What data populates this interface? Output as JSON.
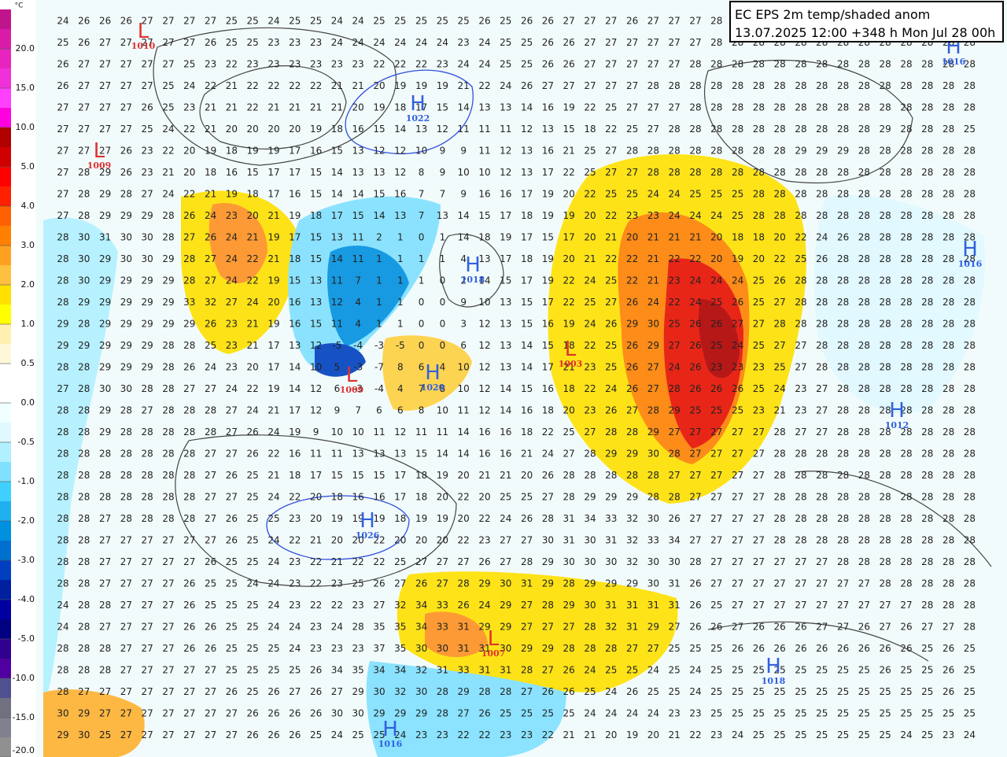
{
  "title": "EC EPS 2m temp/shaded anom",
  "subtitle": "13.07.2025 12:00 +348 h Mon Jul 28 00h",
  "legend": {
    "unit": "°C",
    "ticks": [
      {
        "value": 20,
        "label": "20.0"
      },
      {
        "value": 15,
        "label": "15.0"
      },
      {
        "value": 10,
        "label": "10.0"
      },
      {
        "value": 5,
        "label": "5.0"
      },
      {
        "value": 4,
        "label": "4.0"
      },
      {
        "value": 3,
        "label": "3.0"
      },
      {
        "value": 2,
        "label": "2.0"
      },
      {
        "value": 1,
        "label": "1.0"
      },
      0.5,
      {
        "value": 0,
        "label": "0.0"
      },
      -0.5,
      {
        "value": -1,
        "label": "-1.0"
      },
      {
        "value": -2,
        "label": "-2.0"
      },
      {
        "value": -3,
        "label": "-3.0"
      },
      {
        "value": -4,
        "label": "-4.0"
      },
      {
        "value": -5,
        "label": "-5.0"
      },
      {
        "value": -10,
        "label": "-10.0"
      },
      {
        "value": -15,
        "label": "-15.0"
      },
      {
        "value": -20,
        "label": "-20.0"
      }
    ],
    "colors": [
      "#c0148c",
      "#d81ca8",
      "#e824c0",
      "#f030d8",
      "#ff40ff",
      "#ff00e0",
      "#b00000",
      "#d00000",
      "#ff0000",
      "#ff2000",
      "#ff6000",
      "#ff8000",
      "#ffa020",
      "#ffc040",
      "#ffe000",
      "#ffff00",
      "#fff0b0",
      "#fff8d8",
      "#ffffff",
      "#ffffff",
      "#f0ffff",
      "#e0f8ff",
      "#b0f0ff",
      "#80e0ff",
      "#40d0ff",
      "#20b0f0",
      "#0090e0",
      "#0070d0",
      "#0040c0",
      "#0020a0",
      "#0000a0",
      "#000080",
      "#300090",
      "#5000a0",
      "#505090",
      "#707080",
      "#808090",
      "#909090"
    ]
  },
  "pressure_centers": [
    {
      "symbol": "L",
      "label": "1010"
    },
    {
      "symbol": "L",
      "label": "1009"
    },
    {
      "symbol": "H",
      "label": "1022"
    },
    {
      "symbol": "H",
      "label": "1018"
    },
    {
      "symbol": "H",
      "label": "1026"
    },
    {
      "symbol": "L",
      "label": "1009"
    },
    {
      "symbol": "L",
      "label": "1003"
    },
    {
      "symbol": "H",
      "label": "1020"
    },
    {
      "symbol": "H",
      "label": "1016"
    },
    {
      "symbol": "H",
      "label": "1012"
    },
    {
      "symbol": "L",
      "label": "1007"
    },
    {
      "symbol": "H",
      "label": "1018"
    },
    {
      "symbol": "H",
      "label": "1016"
    },
    {
      "symbol": "H",
      "label": "1016"
    }
  ],
  "temperature_grid": [
    [
      24,
      26,
      26,
      26,
      27,
      27,
      27,
      27,
      25,
      25,
      24,
      25,
      25,
      24,
      24,
      25,
      25,
      25,
      25,
      25,
      26,
      25,
      26,
      26,
      27,
      27,
      27,
      26,
      27,
      27,
      27,
      28,
      28,
      28,
      27,
      28,
      28,
      28,
      28,
      28,
      28,
      28,
      28,
      28
    ],
    [
      25,
      26,
      27,
      27,
      27,
      27,
      27,
      26,
      25,
      25,
      23,
      23,
      23,
      24,
      24,
      24,
      24,
      24,
      24,
      23,
      24,
      25,
      25,
      26,
      26,
      27,
      27,
      27,
      27,
      27,
      27,
      28,
      28,
      28,
      28,
      28,
      28,
      28,
      28,
      28,
      28,
      28,
      28,
      28
    ],
    [
      26,
      27,
      27,
      27,
      27,
      27,
      25,
      23,
      22,
      23,
      23,
      23,
      23,
      23,
      23,
      22,
      22,
      22,
      23,
      24,
      24,
      25,
      25,
      26,
      26,
      27,
      27,
      27,
      27,
      27,
      28,
      28,
      28,
      28,
      28,
      28,
      28,
      28,
      28,
      28,
      28,
      28,
      28,
      28
    ],
    [
      26,
      27,
      27,
      27,
      27,
      25,
      24,
      22,
      21,
      22,
      22,
      22,
      22,
      21,
      21,
      20,
      19,
      19,
      19,
      21,
      22,
      24,
      26,
      27,
      27,
      27,
      27,
      27,
      28,
      28,
      28,
      28,
      28,
      28,
      28,
      28,
      28,
      28,
      28,
      28,
      28,
      28,
      28,
      28
    ],
    [
      27,
      27,
      27,
      27,
      26,
      25,
      23,
      21,
      21,
      22,
      21,
      21,
      21,
      21,
      20,
      19,
      18,
      17,
      15,
      14,
      13,
      13,
      14,
      16,
      19,
      22,
      25,
      27,
      27,
      27,
      28,
      28,
      28,
      28,
      28,
      28,
      28,
      28,
      28,
      28,
      28,
      28,
      28,
      28
    ],
    [
      27,
      27,
      27,
      27,
      25,
      24,
      22,
      21,
      20,
      20,
      20,
      20,
      19,
      18,
      16,
      15,
      14,
      13,
      12,
      11,
      11,
      11,
      12,
      13,
      15,
      18,
      22,
      25,
      27,
      28,
      28,
      28,
      28,
      28,
      28,
      28,
      28,
      28,
      28,
      29,
      28,
      28,
      28,
      25
    ],
    [
      27,
      27,
      27,
      26,
      23,
      22,
      20,
      19,
      18,
      19,
      19,
      17,
      16,
      15,
      13,
      12,
      12,
      10,
      9,
      9,
      11,
      12,
      13,
      16,
      21,
      25,
      27,
      28,
      28,
      28,
      28,
      28,
      28,
      28,
      28,
      29,
      29,
      29,
      28,
      28,
      28,
      28,
      28,
      28
    ],
    [
      27,
      28,
      29,
      26,
      23,
      21,
      20,
      18,
      16,
      15,
      17,
      17,
      15,
      14,
      13,
      13,
      12,
      8,
      9,
      10,
      10,
      12,
      13,
      17,
      22,
      25,
      27,
      27,
      28,
      28,
      28,
      28,
      28,
      28,
      28,
      28,
      28,
      28,
      28,
      28,
      28,
      28,
      28,
      28
    ],
    [
      27,
      28,
      29,
      28,
      27,
      24,
      22,
      21,
      19,
      18,
      17,
      16,
      15,
      14,
      14,
      15,
      16,
      7,
      7,
      9,
      16,
      16,
      17,
      19,
      20,
      22,
      25,
      25,
      24,
      24,
      25,
      25,
      25,
      28,
      28,
      28,
      28,
      28,
      28,
      28,
      28,
      28,
      28,
      28
    ],
    [
      27,
      28,
      29,
      29,
      29,
      28,
      26,
      24,
      23,
      20,
      21,
      19,
      18,
      17,
      15,
      14,
      13,
      7,
      13,
      14,
      15,
      17,
      18,
      19,
      19,
      20,
      22,
      23,
      23,
      24,
      24,
      24,
      25,
      28,
      28,
      28,
      28,
      28,
      28,
      28,
      28,
      28,
      28,
      28
    ],
    [
      28,
      30,
      31,
      30,
      30,
      28,
      27,
      26,
      24,
      21,
      19,
      17,
      15,
      13,
      11,
      2,
      1,
      0,
      1,
      14,
      18,
      19,
      17,
      15,
      17,
      20,
      21,
      20,
      21,
      21,
      21,
      20,
      18,
      18,
      20,
      22,
      24,
      26,
      28,
      28,
      28,
      28,
      28,
      28
    ],
    [
      28,
      30,
      29,
      30,
      30,
      29,
      28,
      27,
      24,
      22,
      21,
      18,
      15,
      14,
      11,
      1,
      1,
      1,
      1,
      4,
      13,
      17,
      18,
      19,
      20,
      21,
      22,
      22,
      21,
      22,
      22,
      20,
      19,
      20,
      22,
      25,
      26,
      28,
      28,
      28,
      28,
      28,
      28,
      28
    ],
    [
      28,
      30,
      29,
      29,
      29,
      29,
      28,
      27,
      24,
      22,
      19,
      15,
      13,
      11,
      7,
      1,
      1,
      1,
      0,
      2,
      14,
      15,
      17,
      19,
      22,
      24,
      25,
      22,
      21,
      23,
      24,
      24,
      24,
      25,
      26,
      28,
      28,
      28,
      28,
      28,
      28,
      28,
      28,
      28
    ],
    [
      28,
      29,
      29,
      29,
      29,
      29,
      33,
      32,
      27,
      24,
      20,
      16,
      13,
      12,
      4,
      1,
      1,
      0,
      0,
      9,
      10,
      13,
      15,
      17,
      22,
      25,
      27,
      26,
      24,
      22,
      24,
      25,
      26,
      25,
      27,
      28,
      28,
      28,
      28,
      28,
      28,
      28,
      28,
      28
    ],
    [
      29,
      28,
      29,
      29,
      29,
      29,
      29,
      26,
      23,
      21,
      19,
      16,
      15,
      11,
      4,
      1,
      1,
      0,
      0,
      3,
      12,
      13,
      15,
      16,
      19,
      24,
      26,
      29,
      30,
      25,
      26,
      26,
      27,
      27,
      28,
      28,
      28,
      28,
      28,
      28,
      28,
      28,
      28,
      28
    ],
    [
      29,
      29,
      29,
      29,
      29,
      28,
      28,
      25,
      23,
      21,
      17,
      13,
      12,
      -5,
      -4,
      -3,
      -5,
      0,
      0,
      6,
      12,
      13,
      14,
      15,
      18,
      22,
      25,
      26,
      29,
      27,
      26,
      25,
      24,
      25,
      27,
      27,
      28,
      28,
      28,
      28,
      28,
      28,
      28,
      28
    ],
    [
      28,
      28,
      29,
      29,
      29,
      28,
      26,
      24,
      23,
      20,
      17,
      14,
      10,
      5,
      -3,
      -7,
      8,
      6,
      4,
      10,
      12,
      13,
      14,
      17,
      21,
      23,
      25,
      26,
      27,
      24,
      26,
      23,
      23,
      23,
      25,
      27,
      28,
      28,
      28,
      28,
      28,
      28,
      28,
      28
    ],
    [
      27,
      28,
      30,
      30,
      28,
      28,
      27,
      27,
      24,
      22,
      19,
      14,
      12,
      6,
      -3,
      -4,
      4,
      7,
      8,
      10,
      12,
      14,
      15,
      16,
      18,
      22,
      24,
      26,
      27,
      28,
      26,
      26,
      26,
      25,
      24,
      23,
      27,
      28,
      28,
      28,
      28,
      28,
      28,
      28
    ],
    [
      28,
      28,
      29,
      28,
      27,
      28,
      28,
      28,
      27,
      24,
      21,
      17,
      12,
      9,
      7,
      6,
      6,
      8,
      10,
      11,
      12,
      14,
      16,
      18,
      20,
      23,
      26,
      27,
      28,
      29,
      25,
      25,
      25,
      23,
      21,
      23,
      27,
      28,
      28,
      28,
      28,
      28,
      28,
      28
    ],
    [
      28,
      28,
      29,
      28,
      28,
      28,
      28,
      28,
      27,
      26,
      24,
      19,
      9,
      10,
      10,
      11,
      12,
      11,
      11,
      14,
      16,
      16,
      18,
      22,
      25,
      27,
      28,
      28,
      29,
      27,
      27,
      27,
      27,
      27,
      28,
      27,
      27,
      28,
      28,
      28,
      28,
      28,
      28,
      28
    ],
    [
      28,
      28,
      28,
      28,
      28,
      28,
      28,
      27,
      27,
      26,
      22,
      16,
      11,
      11,
      13,
      13,
      13,
      15,
      14,
      14,
      16,
      16,
      21,
      24,
      27,
      28,
      29,
      29,
      30,
      28,
      27,
      27,
      27,
      27,
      28,
      28,
      28,
      28,
      28,
      28,
      28,
      28,
      28,
      28
    ],
    [
      28,
      28,
      28,
      28,
      28,
      28,
      28,
      27,
      26,
      25,
      21,
      18,
      17,
      15,
      15,
      15,
      17,
      18,
      19,
      20,
      21,
      21,
      20,
      26,
      28,
      28,
      28,
      28,
      28,
      27,
      27,
      27,
      27,
      27,
      28,
      28,
      28,
      28,
      28,
      28,
      28,
      28,
      28,
      28
    ],
    [
      28,
      28,
      28,
      28,
      28,
      28,
      28,
      27,
      27,
      25,
      24,
      22,
      20,
      18,
      16,
      16,
      17,
      18,
      20,
      22,
      20,
      25,
      25,
      27,
      28,
      29,
      29,
      29,
      28,
      28,
      27,
      27,
      27,
      27,
      28,
      28,
      28,
      28,
      28,
      28,
      28,
      28,
      28,
      28
    ],
    [
      28,
      28,
      27,
      28,
      28,
      28,
      28,
      27,
      26,
      25,
      25,
      23,
      20,
      19,
      19,
      19,
      18,
      19,
      19,
      20,
      22,
      24,
      26,
      28,
      31,
      34,
      33,
      32,
      30,
      26,
      27,
      27,
      27,
      27,
      28,
      28,
      28,
      28,
      28,
      28,
      28,
      28,
      28,
      28
    ],
    [
      28,
      28,
      27,
      27,
      27,
      27,
      27,
      27,
      26,
      25,
      24,
      22,
      21,
      20,
      20,
      22,
      20,
      20,
      20,
      22,
      23,
      27,
      27,
      30,
      31,
      30,
      31,
      32,
      33,
      34,
      27,
      27,
      27,
      27,
      28,
      28,
      28,
      28,
      28,
      28,
      28,
      28,
      28,
      28
    ],
    [
      28,
      28,
      27,
      27,
      27,
      27,
      27,
      26,
      25,
      25,
      24,
      23,
      22,
      21,
      22,
      22,
      25,
      27,
      27,
      27,
      26,
      27,
      28,
      29,
      30,
      30,
      30,
      32,
      30,
      30,
      28,
      27,
      27,
      27,
      27,
      27,
      27,
      28,
      28,
      28,
      28,
      28,
      28,
      28
    ],
    [
      28,
      28,
      27,
      27,
      27,
      27,
      26,
      25,
      25,
      24,
      24,
      23,
      22,
      23,
      25,
      26,
      27,
      26,
      27,
      28,
      29,
      30,
      31,
      29,
      28,
      29,
      29,
      29,
      30,
      31,
      26,
      27,
      27,
      27,
      27,
      27,
      27,
      27,
      27,
      28,
      28,
      28,
      28,
      28
    ],
    [
      24,
      28,
      28,
      27,
      27,
      27,
      26,
      25,
      25,
      25,
      24,
      23,
      22,
      22,
      23,
      27,
      32,
      34,
      33,
      26,
      24,
      29,
      27,
      28,
      29,
      30,
      31,
      31,
      31,
      31,
      26,
      25,
      27,
      27,
      27,
      27,
      27,
      27,
      27,
      27,
      27,
      28,
      28,
      28
    ],
    [
      24,
      28,
      27,
      27,
      27,
      27,
      26,
      26,
      25,
      25,
      24,
      24,
      23,
      24,
      28,
      35,
      35,
      34,
      33,
      31,
      29,
      29,
      27,
      27,
      27,
      28,
      32,
      31,
      29,
      27,
      26,
      26,
      27,
      26,
      26,
      26,
      27,
      27,
      26,
      27,
      26,
      27,
      27,
      28
    ],
    [
      28,
      28,
      28,
      27,
      27,
      27,
      26,
      26,
      25,
      25,
      25,
      24,
      23,
      23,
      23,
      37,
      35,
      30,
      30,
      31,
      31,
      30,
      29,
      29,
      28,
      28,
      28,
      27,
      27,
      25,
      25,
      25,
      26,
      26,
      26,
      26,
      26,
      26,
      26,
      26,
      26,
      25,
      26,
      25
    ],
    [
      28,
      28,
      28,
      27,
      27,
      27,
      27,
      27,
      25,
      25,
      25,
      25,
      26,
      34,
      35,
      34,
      34,
      32,
      31,
      33,
      31,
      31,
      28,
      27,
      26,
      24,
      25,
      25,
      24,
      25,
      24,
      25,
      25,
      25,
      25,
      25,
      25,
      25,
      25,
      26,
      25,
      25,
      26,
      25
    ],
    [
      28,
      27,
      27,
      27,
      27,
      27,
      27,
      27,
      26,
      25,
      26,
      27,
      26,
      27,
      29,
      30,
      32,
      30,
      28,
      29,
      28,
      28,
      27,
      26,
      26,
      25,
      24,
      26,
      25,
      25,
      24,
      25,
      25,
      25,
      25,
      25,
      25,
      25,
      25,
      25,
      25,
      25,
      26,
      25
    ],
    [
      30,
      29,
      27,
      27,
      27,
      27,
      27,
      27,
      27,
      26,
      26,
      26,
      26,
      30,
      30,
      29,
      29,
      29,
      28,
      27,
      26,
      25,
      25,
      25,
      25,
      24,
      24,
      24,
      24,
      23,
      23,
      25,
      25,
      25,
      25,
      25,
      25,
      25,
      25,
      25,
      25,
      25,
      25,
      25
    ],
    [
      29,
      30,
      25,
      27,
      27,
      27,
      27,
      27,
      27,
      26,
      26,
      26,
      25,
      24,
      25,
      25,
      24,
      23,
      23,
      22,
      22,
      23,
      23,
      22,
      21,
      21,
      20,
      19,
      20,
      21,
      22,
      23,
      24,
      25,
      25,
      25,
      25,
      25,
      25,
      25,
      24,
      25,
      23,
      24
    ]
  ]
}
